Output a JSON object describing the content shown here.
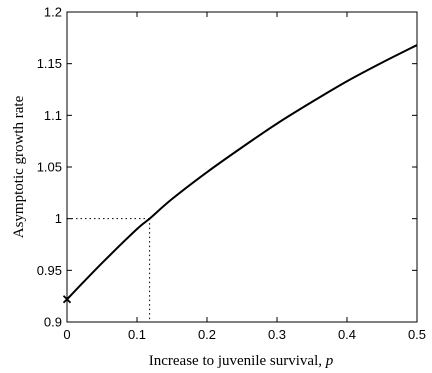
{
  "chart_data": {
    "type": "line",
    "title": "",
    "xlabel": "Increase to juvenile survival, ",
    "xlabel_var": "p",
    "ylabel": "Asymptotic growth rate",
    "xlim": [
      0,
      0.5
    ],
    "ylim": [
      0.9,
      1.2
    ],
    "grid": false,
    "legend": "none",
    "xticks": [
      0,
      0.1,
      0.2,
      0.3,
      0.4,
      0.5
    ],
    "xtick_labels": [
      "0",
      "0.1",
      "0.2",
      "0.3",
      "0.4",
      "0.5"
    ],
    "yticks": [
      0.9,
      0.95,
      1.0,
      1.05,
      1.1,
      1.15,
      1.2
    ],
    "ytick_labels": [
      "0.9",
      "0.95",
      "1",
      "1.05",
      "1.1",
      "1.15",
      "1.2"
    ],
    "series": [
      {
        "x": [
          0,
          0.05,
          0.1,
          0.118,
          0.15,
          0.2,
          0.25,
          0.3,
          0.35,
          0.4,
          0.45,
          0.5
        ],
        "y": [
          0.922,
          0.957,
          0.99,
          1.0,
          1.019,
          1.045,
          1.069,
          1.092,
          1.113,
          1.133,
          1.151,
          1.168
        ],
        "color": "#000000"
      }
    ],
    "marker": {
      "x": 0,
      "y": 0.922,
      "symbol": "x"
    },
    "reference": {
      "x": 0.118,
      "y": 1.0,
      "style": "dotted"
    }
  }
}
